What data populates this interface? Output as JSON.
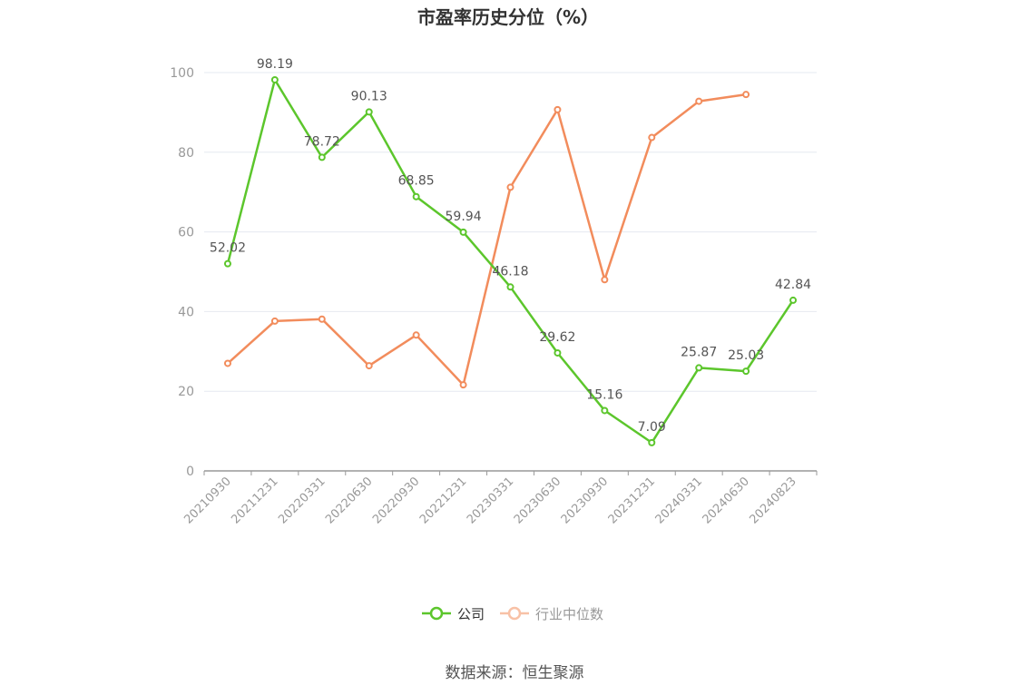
{
  "chart_data": {
    "type": "line",
    "title": "市盈率历史分位（%）",
    "x": [
      "20210930",
      "20211231",
      "20220331",
      "20220630",
      "20220930",
      "20221231",
      "20230331",
      "20230630",
      "20230930",
      "20231231",
      "20240331",
      "20240630",
      "20240823"
    ],
    "ylim": [
      0,
      100
    ],
    "yticks": [
      "0",
      "20",
      "40",
      "60",
      "80",
      "100"
    ],
    "grid": true,
    "legend_position": "bottom",
    "series": [
      {
        "name": "公司",
        "color": "#5cc62c",
        "values": [
          52.02,
          98.19,
          78.72,
          90.13,
          68.85,
          59.94,
          46.18,
          29.62,
          15.16,
          7.09,
          25.87,
          25.03,
          42.84
        ],
        "labels": [
          "52.02",
          "98.19",
          "78.72",
          "90.13",
          "68.85",
          "59.94",
          "46.18",
          "29.62",
          "15.16",
          "7.09",
          "25.87",
          "25.03",
          "42.84"
        ]
      },
      {
        "name": "行业中位数",
        "color": "#f28c5c",
        "values": [
          27.0,
          37.6,
          38.1,
          26.4,
          34.1,
          21.6,
          71.2,
          90.7,
          48.0,
          83.7,
          92.8,
          94.5,
          null
        ]
      }
    ]
  },
  "source": "数据来源：恒生聚源"
}
